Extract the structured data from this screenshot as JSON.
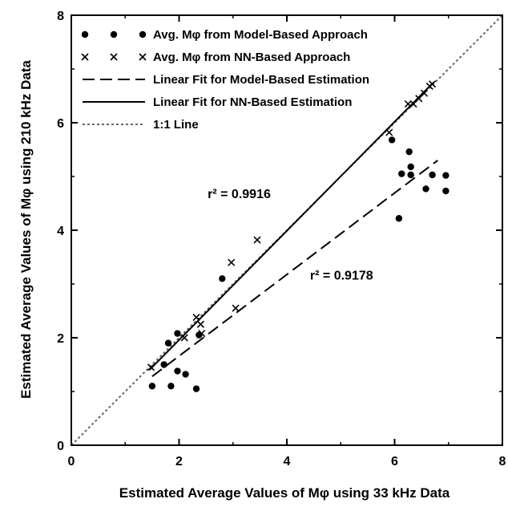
{
  "chart_data": {
    "type": "scatter",
    "xlabel": "Estimated Average Values of Mφ using 33 kHz Data",
    "ylabel": "Estimated Average Values of Mφ using 210 kHz Data",
    "xlim": [
      0,
      8
    ],
    "ylim": [
      0,
      8
    ],
    "xticks": [
      "0",
      "2",
      "4",
      "6",
      "8"
    ],
    "yticks": [
      "0",
      "2",
      "4",
      "6",
      "8"
    ],
    "grid": false,
    "legend_position": "top-left",
    "series": [
      {
        "name": "Avg. Mφ from Model-Based Approach",
        "marker": "dot",
        "points": [
          [
            1.5,
            1.1
          ],
          [
            1.72,
            1.5
          ],
          [
            1.8,
            1.9
          ],
          [
            1.85,
            1.1
          ],
          [
            1.97,
            1.38
          ],
          [
            1.97,
            2.08
          ],
          [
            2.12,
            1.32
          ],
          [
            2.32,
            1.05
          ],
          [
            2.37,
            2.05
          ],
          [
            2.8,
            3.1
          ],
          [
            5.95,
            5.68
          ],
          [
            6.08,
            4.22
          ],
          [
            6.13,
            5.05
          ],
          [
            6.27,
            5.46
          ],
          [
            6.3,
            5.18
          ],
          [
            6.3,
            5.03
          ],
          [
            6.58,
            4.77
          ],
          [
            6.7,
            5.03
          ],
          [
            6.95,
            5.02
          ],
          [
            6.95,
            4.73
          ]
        ]
      },
      {
        "name": "Avg. Mφ from NN-Based Approach",
        "marker": "x",
        "points": [
          [
            1.48,
            1.45
          ],
          [
            2.1,
            2.0
          ],
          [
            2.32,
            2.38
          ],
          [
            2.4,
            2.25
          ],
          [
            2.42,
            2.08
          ],
          [
            2.97,
            3.4
          ],
          [
            3.05,
            2.55
          ],
          [
            3.45,
            3.82
          ],
          [
            5.9,
            5.82
          ],
          [
            6.25,
            6.35
          ],
          [
            6.35,
            6.35
          ],
          [
            6.45,
            6.45
          ],
          [
            6.55,
            6.55
          ],
          [
            6.65,
            6.68
          ],
          [
            6.7,
            6.72
          ]
        ]
      }
    ],
    "lines": [
      {
        "name": "Linear Fit for Model-Based Estimation",
        "style": "dashed",
        "x": [
          1.5,
          6.8
        ],
        "y": [
          1.28,
          5.3
        ]
      },
      {
        "name": "Linear Fit for NN-Based Estimation",
        "style": "solid",
        "x": [
          1.45,
          6.72
        ],
        "y": [
          1.4,
          6.75
        ]
      },
      {
        "name": "1:1 Line",
        "style": "dotted",
        "x": [
          0,
          8
        ],
        "y": [
          0,
          8
        ]
      }
    ],
    "annotations": [
      {
        "text": "r² = 0.9916",
        "x": 2.53,
        "y": 4.6
      },
      {
        "text": "r² = 0.9178",
        "x": 4.43,
        "y": 3.08
      }
    ]
  }
}
